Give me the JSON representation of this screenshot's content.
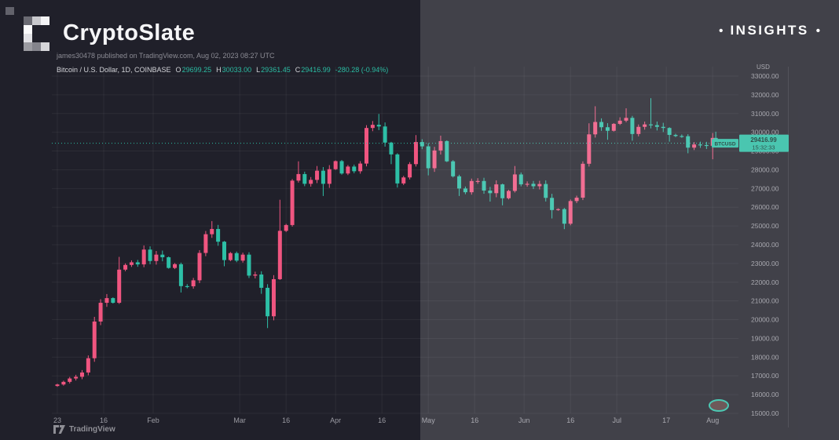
{
  "page": {
    "bg": "#20202a",
    "overlay_color": "rgba(255,255,255,0.15)"
  },
  "header": {
    "brand": "CryptoSlate",
    "insights": "INSIGHTS",
    "bullet": "•",
    "logo_pixels": [
      [
        "#6b6b73",
        "#c9c9cd",
        "#f3f3f5"
      ],
      [
        "#fbfbfc",
        "",
        ""
      ],
      [
        "#e2e2e6",
        "",
        ""
      ],
      [
        "#9b9ba1",
        "#84848c",
        "#d6d6da"
      ]
    ]
  },
  "chart": {
    "attribution": "james30478 published on TradingView.com, Aug 02, 2023 08:27 UTC",
    "legend_title": "Bitcoin / U.S. Dollar, 1D, COINBASE",
    "ohlc": [
      {
        "k": "O",
        "v": "29699.25"
      },
      {
        "k": "H",
        "v": "30033.00"
      },
      {
        "k": "L",
        "v": "29361.45"
      },
      {
        "k": "C",
        "v": "29416.99"
      }
    ],
    "change": "-280.28 (-0.94%)"
  },
  "footer": {
    "tradingview": "TradingView"
  },
  "chart_data": {
    "type": "candlestick",
    "symbol": "BTCUSD",
    "title": "Bitcoin / U.S. Dollar, 1D, COINBASE",
    "interval": "1D",
    "exchange": "COINBASE",
    "last": {
      "open": 29699.25,
      "high": 30033.0,
      "low": 29361.45,
      "close": 29416.99,
      "change": -280.28,
      "change_pct": -0.94
    },
    "last_price_label": "29416.99",
    "countdown": "15:32:33",
    "up_color": "#f05580",
    "down_color": "#2dbfa6",
    "accent": "#2bbca3",
    "axis_text_color": "#9b9ba3",
    "grid_color": "rgba(255,255,255,0.055)",
    "y_axis": {
      "unit": "USD",
      "min": 15000,
      "max": 33000,
      "step": 1000,
      "labels": [
        "33000.00",
        "32000.00",
        "31000.00",
        "30000.00",
        "29000.00",
        "28000.00",
        "27000.00",
        "26000.00",
        "25000.00",
        "24000.00",
        "23000.00",
        "22000.00",
        "21000.00",
        "20000.00",
        "19000.00",
        "18000.00",
        "17000.00",
        "16000.00",
        "15000.00"
      ]
    },
    "x_ticks": [
      {
        "label": "23",
        "t": 1
      },
      {
        "label": "16",
        "t": 16
      },
      {
        "label": "Feb",
        "t": 32
      },
      {
        "label": "Mar",
        "t": 60
      },
      {
        "label": "16",
        "t": 75
      },
      {
        "label": "Apr",
        "t": 91
      },
      {
        "label": "16",
        "t": 106
      },
      {
        "label": "May",
        "t": 121
      },
      {
        "label": "16",
        "t": 136
      },
      {
        "label": "Jun",
        "t": 152
      },
      {
        "label": "16",
        "t": 167
      },
      {
        "label": "Jul",
        "t": 182
      },
      {
        "label": "17",
        "t": 198
      },
      {
        "label": "Aug",
        "t": 213
      }
    ],
    "candles_note": "entries are [dayOfYear2023, close] or [dayOfYear, close, high, low]; 0 = auto wick",
    "candles": [
      [
        1,
        16540
      ],
      [
        3,
        16680
      ],
      [
        5,
        16860
      ],
      [
        7,
        16950
      ],
      [
        9,
        17180
      ],
      [
        11,
        17940
      ],
      [
        13,
        19900,
        20150,
        17750
      ],
      [
        15,
        20900
      ],
      [
        17,
        21150
      ],
      [
        19,
        20900
      ],
      [
        21,
        22670,
        23350,
        0
      ],
      [
        23,
        22920
      ],
      [
        25,
        23060
      ],
      [
        27,
        22950
      ],
      [
        29,
        23740,
        23960,
        0
      ],
      [
        31,
        23130
      ],
      [
        33,
        23470
      ],
      [
        35,
        23330
      ],
      [
        37,
        22760
      ],
      [
        39,
        22960
      ],
      [
        41,
        21790,
        0,
        21450
      ],
      [
        43,
        21780
      ],
      [
        45,
        22100
      ],
      [
        47,
        23560
      ],
      [
        49,
        24560
      ],
      [
        51,
        24840,
        25260,
        0
      ],
      [
        53,
        24160
      ],
      [
        55,
        23180,
        0,
        22850
      ],
      [
        57,
        23550
      ],
      [
        59,
        23150
      ],
      [
        61,
        23470
      ],
      [
        63,
        22350
      ],
      [
        65,
        22410
      ],
      [
        67,
        21700,
        0,
        21380
      ],
      [
        69,
        20180,
        0,
        19550
      ],
      [
        71,
        22160
      ],
      [
        73,
        24740,
        26400,
        0
      ],
      [
        75,
        25050
      ],
      [
        77,
        27420
      ],
      [
        79,
        27770,
        28450,
        0
      ],
      [
        81,
        27250
      ],
      [
        83,
        27460
      ],
      [
        85,
        27950,
        28200,
        0
      ],
      [
        87,
        27250,
        0,
        26600
      ],
      [
        89,
        28030
      ],
      [
        91,
        28460
      ],
      [
        93,
        27800
      ],
      [
        95,
        28170
      ],
      [
        97,
        27920
      ],
      [
        99,
        28330
      ],
      [
        101,
        30230
      ],
      [
        103,
        30400,
        30600,
        0
      ],
      [
        105,
        30310,
        30980,
        0
      ],
      [
        107,
        29450
      ],
      [
        109,
        28820,
        0,
        28300
      ],
      [
        111,
        27270,
        0,
        27050
      ],
      [
        113,
        27590
      ],
      [
        115,
        28300
      ],
      [
        117,
        29480,
        29850,
        0
      ],
      [
        119,
        29250
      ],
      [
        121,
        28080,
        0,
        27700
      ],
      [
        123,
        29030
      ],
      [
        125,
        29530,
        29820,
        0
      ],
      [
        127,
        28450
      ],
      [
        129,
        27650
      ],
      [
        131,
        27000,
        0,
        26600
      ],
      [
        133,
        26800
      ],
      [
        135,
        27400
      ],
      [
        137,
        27400
      ],
      [
        139,
        26890
      ],
      [
        141,
        26750,
        0,
        26300
      ],
      [
        143,
        27220
      ],
      [
        145,
        26480,
        0,
        26100
      ],
      [
        147,
        26870
      ],
      [
        149,
        27750,
        28200,
        0
      ],
      [
        151,
        27220
      ],
      [
        153,
        27250
      ],
      [
        155,
        27120
      ],
      [
        157,
        27240
      ],
      [
        159,
        26500
      ],
      [
        161,
        25850,
        0,
        25400
      ],
      [
        163,
        25900
      ],
      [
        165,
        25120,
        0,
        24830
      ],
      [
        167,
        26330
      ],
      [
        169,
        26510
      ],
      [
        171,
        28320
      ],
      [
        173,
        29890,
        30480,
        0
      ],
      [
        175,
        30550,
        31390,
        0
      ],
      [
        177,
        30270
      ],
      [
        179,
        30080,
        0,
        29600
      ],
      [
        181,
        30450
      ],
      [
        183,
        30620,
        30800,
        0
      ],
      [
        185,
        30770,
        31280,
        0
      ],
      [
        187,
        29910,
        0,
        29550
      ],
      [
        189,
        30290
      ],
      [
        191,
        30420
      ],
      [
        193,
        30380,
        31820,
        0
      ],
      [
        195,
        30290
      ],
      [
        197,
        30230
      ],
      [
        199,
        29860,
        0,
        29500
      ],
      [
        201,
        29800
      ],
      [
        203,
        29790
      ],
      [
        205,
        29180,
        0,
        28880
      ],
      [
        207,
        29350
      ],
      [
        209,
        29320
      ],
      [
        211,
        29280
      ],
      [
        213,
        29700,
        29960,
        28560
      ],
      [
        214,
        29417,
        30033,
        29361
      ]
    ]
  }
}
